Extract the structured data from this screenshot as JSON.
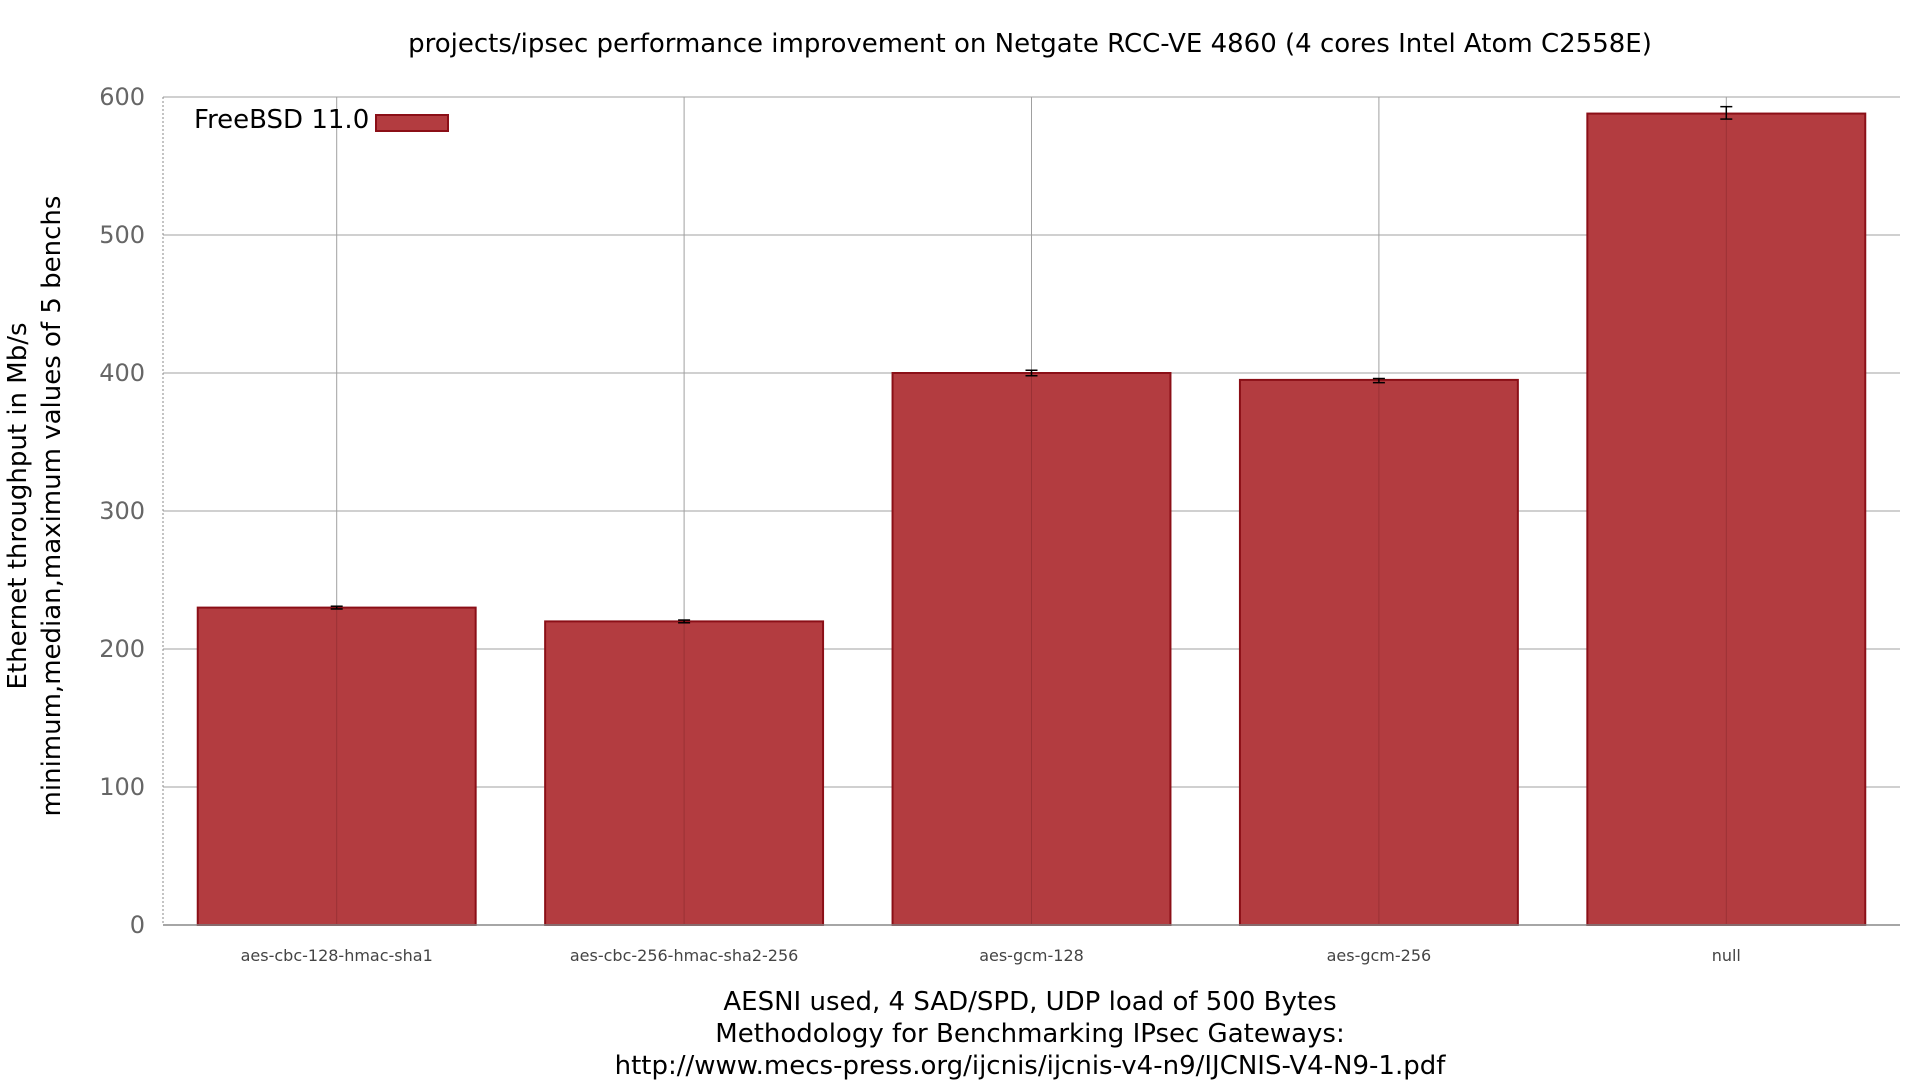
{
  "chart_data": {
    "type": "bar",
    "title": "projects/ipsec performance improvement on Netgate RCC-VE 4860 (4 cores Intel Atom C2558E)",
    "ylabel_lines": [
      "Ethernet throughput in Mb/s",
      "minimum,median,maximum values of 5 benchs"
    ],
    "xlabel_lines": [
      "AESNI used, 4 SAD/SPD, UDP load of 500 Bytes",
      "Methodology for Benchmarking IPsec Gateways:",
      "http://www.mecs-press.org/ijcnis/ijcnis-v4-n9/IJCNIS-V4-N9-1.pdf"
    ],
    "categories": [
      "aes-cbc-128-hmac-sha1",
      "aes-cbc-256-hmac-sha2-256",
      "aes-gcm-128",
      "aes-gcm-256",
      "null"
    ],
    "series": [
      {
        "name": "FreeBSD 11.0",
        "values": [
          230,
          220,
          400,
          395,
          588
        ],
        "min": [
          229,
          219,
          398,
          393,
          584
        ],
        "max": [
          231,
          221,
          402,
          396,
          593
        ]
      }
    ],
    "ylim": [
      0,
      600
    ],
    "yticks": [
      0,
      100,
      200,
      300,
      400,
      500,
      600
    ],
    "grid": true,
    "legend_position": "top-left",
    "colors": {
      "bar_fill": "#b33c40",
      "bar_stroke": "#8b0f17",
      "grid": "#a0a0a0",
      "axis": "#888888"
    }
  }
}
